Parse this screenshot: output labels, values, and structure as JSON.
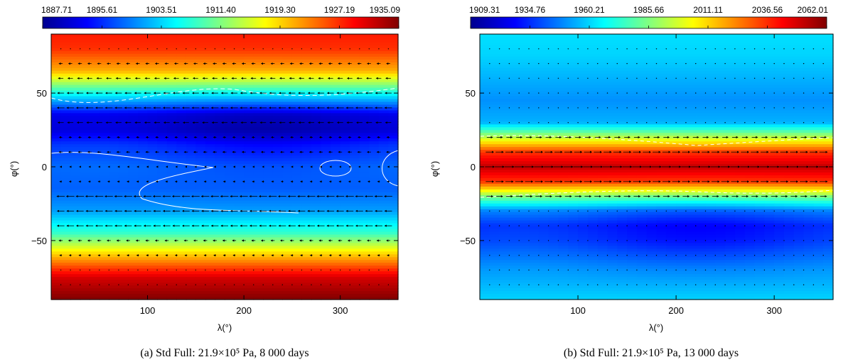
{
  "chart_data": [
    {
      "type": "heatmap",
      "panel": "a",
      "caption": "(a) Std Full: 21.9×10⁵ Pa, 8 000 days",
      "xlabel": "λ(°)",
      "ylabel": "φ(°)",
      "xlim": [
        0,
        360
      ],
      "ylim": [
        -90,
        90
      ],
      "xticks": [
        100,
        200,
        300
      ],
      "yticks": [
        -50,
        0,
        50
      ],
      "colorbar": {
        "range": [
          1887.71,
          1935.09
        ],
        "ticks": [
          "1887.71",
          "1895.61",
          "1903.51",
          "1911.40",
          "1919.30",
          "1927.19",
          "1935.09"
        ]
      },
      "colormap": [
        "#00008f",
        "#0000ff",
        "#0080ff",
        "#00ffff",
        "#80ff80",
        "#ffff00",
        "#ff8000",
        "#ff0000",
        "#800000"
      ],
      "field_profile": {
        "description": "temperature vs latitude (coldest near 20N, warm poles)",
        "lat": [
          -90,
          -75,
          -60,
          -45,
          -30,
          -15,
          0,
          15,
          25,
          35,
          50,
          65,
          80,
          90
        ],
        "value": [
          1935.0,
          1931.0,
          1920.0,
          1908.0,
          1901.0,
          1898.0,
          1898.0,
          1895.0,
          1890.5,
          1891.5,
          1906.0,
          1921.0,
          1927.0,
          1928.0
        ]
      },
      "wind_rows": [
        {
          "lat": -40,
          "u": -1.0
        },
        {
          "lat": -30,
          "u": -1.0
        },
        {
          "lat": -20,
          "u": -1.1
        },
        {
          "lat": -10,
          "u": -0.3
        },
        {
          "lat": 0,
          "u": -0.2
        },
        {
          "lat": 10,
          "u": -0.5
        },
        {
          "lat": 20,
          "u": -0.4
        },
        {
          "lat": 30,
          "u": -0.8
        },
        {
          "lat": 40,
          "u": -1.0
        },
        {
          "lat": 50,
          "u": -0.9
        },
        {
          "lat": 60,
          "u": -0.7
        },
        {
          "lat": 70,
          "u": -0.5
        },
        {
          "lat": -50,
          "u": -0.5
        },
        {
          "lat": -60,
          "u": -0.3
        }
      ]
    },
    {
      "type": "heatmap",
      "panel": "b",
      "caption": "(b) Std Full: 21.9×10⁵ Pa, 13 000 days",
      "xlabel": "λ(°)",
      "ylabel": "φ(°)",
      "xlim": [
        0,
        360
      ],
      "ylim": [
        -90,
        90
      ],
      "xticks": [
        100,
        200,
        300
      ],
      "yticks": [
        -50,
        0,
        50
      ],
      "colorbar": {
        "range": [
          1909.31,
          2062.01
        ],
        "ticks": [
          "1909.31",
          "1934.76",
          "1960.21",
          "1985.66",
          "2011.11",
          "2036.56",
          "2062.01"
        ]
      },
      "colormap": [
        "#00008f",
        "#0000ff",
        "#0080ff",
        "#00ffff",
        "#80ff80",
        "#ffff00",
        "#ff8000",
        "#ff0000",
        "#800000"
      ],
      "field_profile": {
        "description": "temperature vs latitude (hot equatorial jet, cold near 45S)",
        "lat": [
          -90,
          -70,
          -50,
          -40,
          -30,
          -20,
          -10,
          0,
          10,
          20,
          30,
          45,
          60,
          75,
          90
        ],
        "value": [
          1960.0,
          1950.0,
          1935.0,
          1932.0,
          1945.0,
          1985.0,
          2035.0,
          2052.0,
          2035.0,
          1995.0,
          1955.0,
          1950.0,
          1955.0,
          1960.0,
          1962.0
        ]
      },
      "wind_rows": [
        {
          "lat": -20,
          "u": 0.9
        },
        {
          "lat": -10,
          "u": 1.1
        },
        {
          "lat": 0,
          "u": 1.3
        },
        {
          "lat": 10,
          "u": 1.1
        },
        {
          "lat": 20,
          "u": 0.8
        }
      ]
    }
  ]
}
